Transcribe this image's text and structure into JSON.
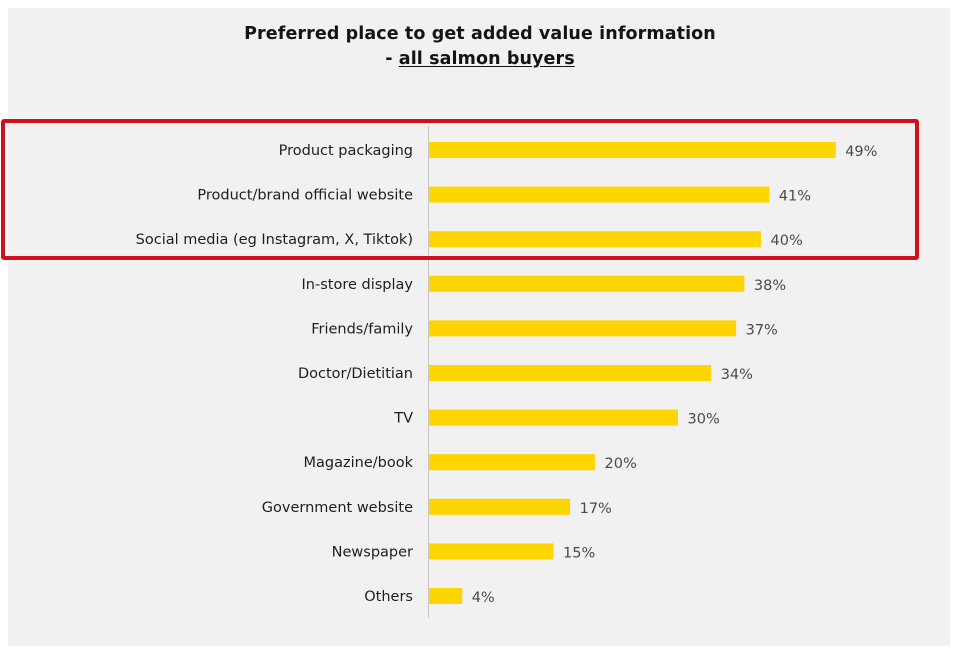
{
  "chart_data": {
    "type": "bar",
    "orientation": "horizontal",
    "title": "Preferred place to get added value information",
    "subtitle_prefix": "- ",
    "subtitle": "all salmon buyers",
    "xlabel": "",
    "ylabel": "",
    "xlim": [
      0,
      100
    ],
    "unit": "%",
    "grid": false,
    "legend": "none",
    "categories": [
      "Product packaging",
      "Product/brand official website",
      "Social media (eg Instagram, X, Tiktok)",
      "In-store display",
      "Friends/family",
      "Doctor/Dietitian",
      "TV",
      "Magazine/book",
      "Government website",
      "Newspaper",
      "Others"
    ],
    "values": [
      49,
      41,
      40,
      38,
      37,
      34,
      30,
      20,
      17,
      15,
      4
    ],
    "value_labels": [
      "49%",
      "41%",
      "40%",
      "38%",
      "37%",
      "34%",
      "30%",
      "20%",
      "17%",
      "15%",
      "4%"
    ],
    "highlighted_categories": [
      "Product packaging",
      "Product/brand official website",
      "Social media (eg Instagram, X, Tiktok)"
    ],
    "colors": {
      "bar": "#ffd500",
      "highlight_border": "#d0101a",
      "axis": "#c8c8c8",
      "background": "#f1f1f1"
    }
  }
}
